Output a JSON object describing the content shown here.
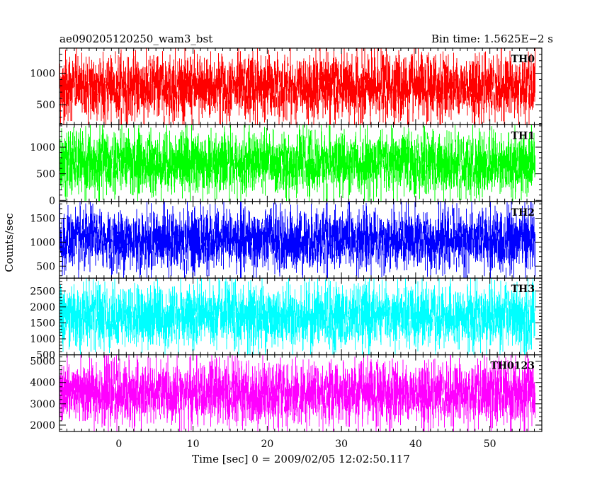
{
  "header": {
    "title": "ae090205120250_wam3_bst",
    "bin_time": "Bin time: 1.5625E−2 s"
  },
  "chart_data": {
    "type": "line",
    "xlabel": "Time [sec] 0 = 2009/02/05 12:02:50.117",
    "ylabel": "Counts/sec",
    "xlim": [
      -8,
      57
    ],
    "x_ticks": [
      0,
      10,
      20,
      30,
      40,
      50
    ],
    "data_x_range": [
      -8,
      56
    ],
    "colors": {
      "axis": "#000000",
      "background": "#ffffff"
    },
    "panels": [
      {
        "name": "TH0",
        "color": "#ff0000",
        "ylim": [
          180,
          1400
        ],
        "y_ticks": [
          500,
          1000
        ],
        "mean": 700,
        "low": 170,
        "high": 1390
      },
      {
        "name": "TH1",
        "color": "#00ff00",
        "ylim": [
          -20,
          1420
        ],
        "y_ticks": [
          0,
          500,
          1000
        ],
        "mean": 600,
        "low": 20,
        "high": 1380
      },
      {
        "name": "TH2",
        "color": "#0000ff",
        "ylim": [
          250,
          1850
        ],
        "y_ticks": [
          500,
          1000,
          1500
        ],
        "mean": 950,
        "low": 290,
        "high": 1800
      },
      {
        "name": "TH3",
        "color": "#00ffff",
        "ylim": [
          500,
          2900
        ],
        "y_ticks": [
          500,
          1000,
          1500,
          2000,
          2500
        ],
        "mean": 1500,
        "low": 540,
        "high": 2850
      },
      {
        "name": "TH0123",
        "color": "#ff00ff",
        "ylim": [
          1700,
          5300
        ],
        "y_ticks": [
          2000,
          3000,
          4000,
          5000
        ],
        "mean": 3300,
        "low": 1750,
        "high": 5250
      }
    ]
  }
}
